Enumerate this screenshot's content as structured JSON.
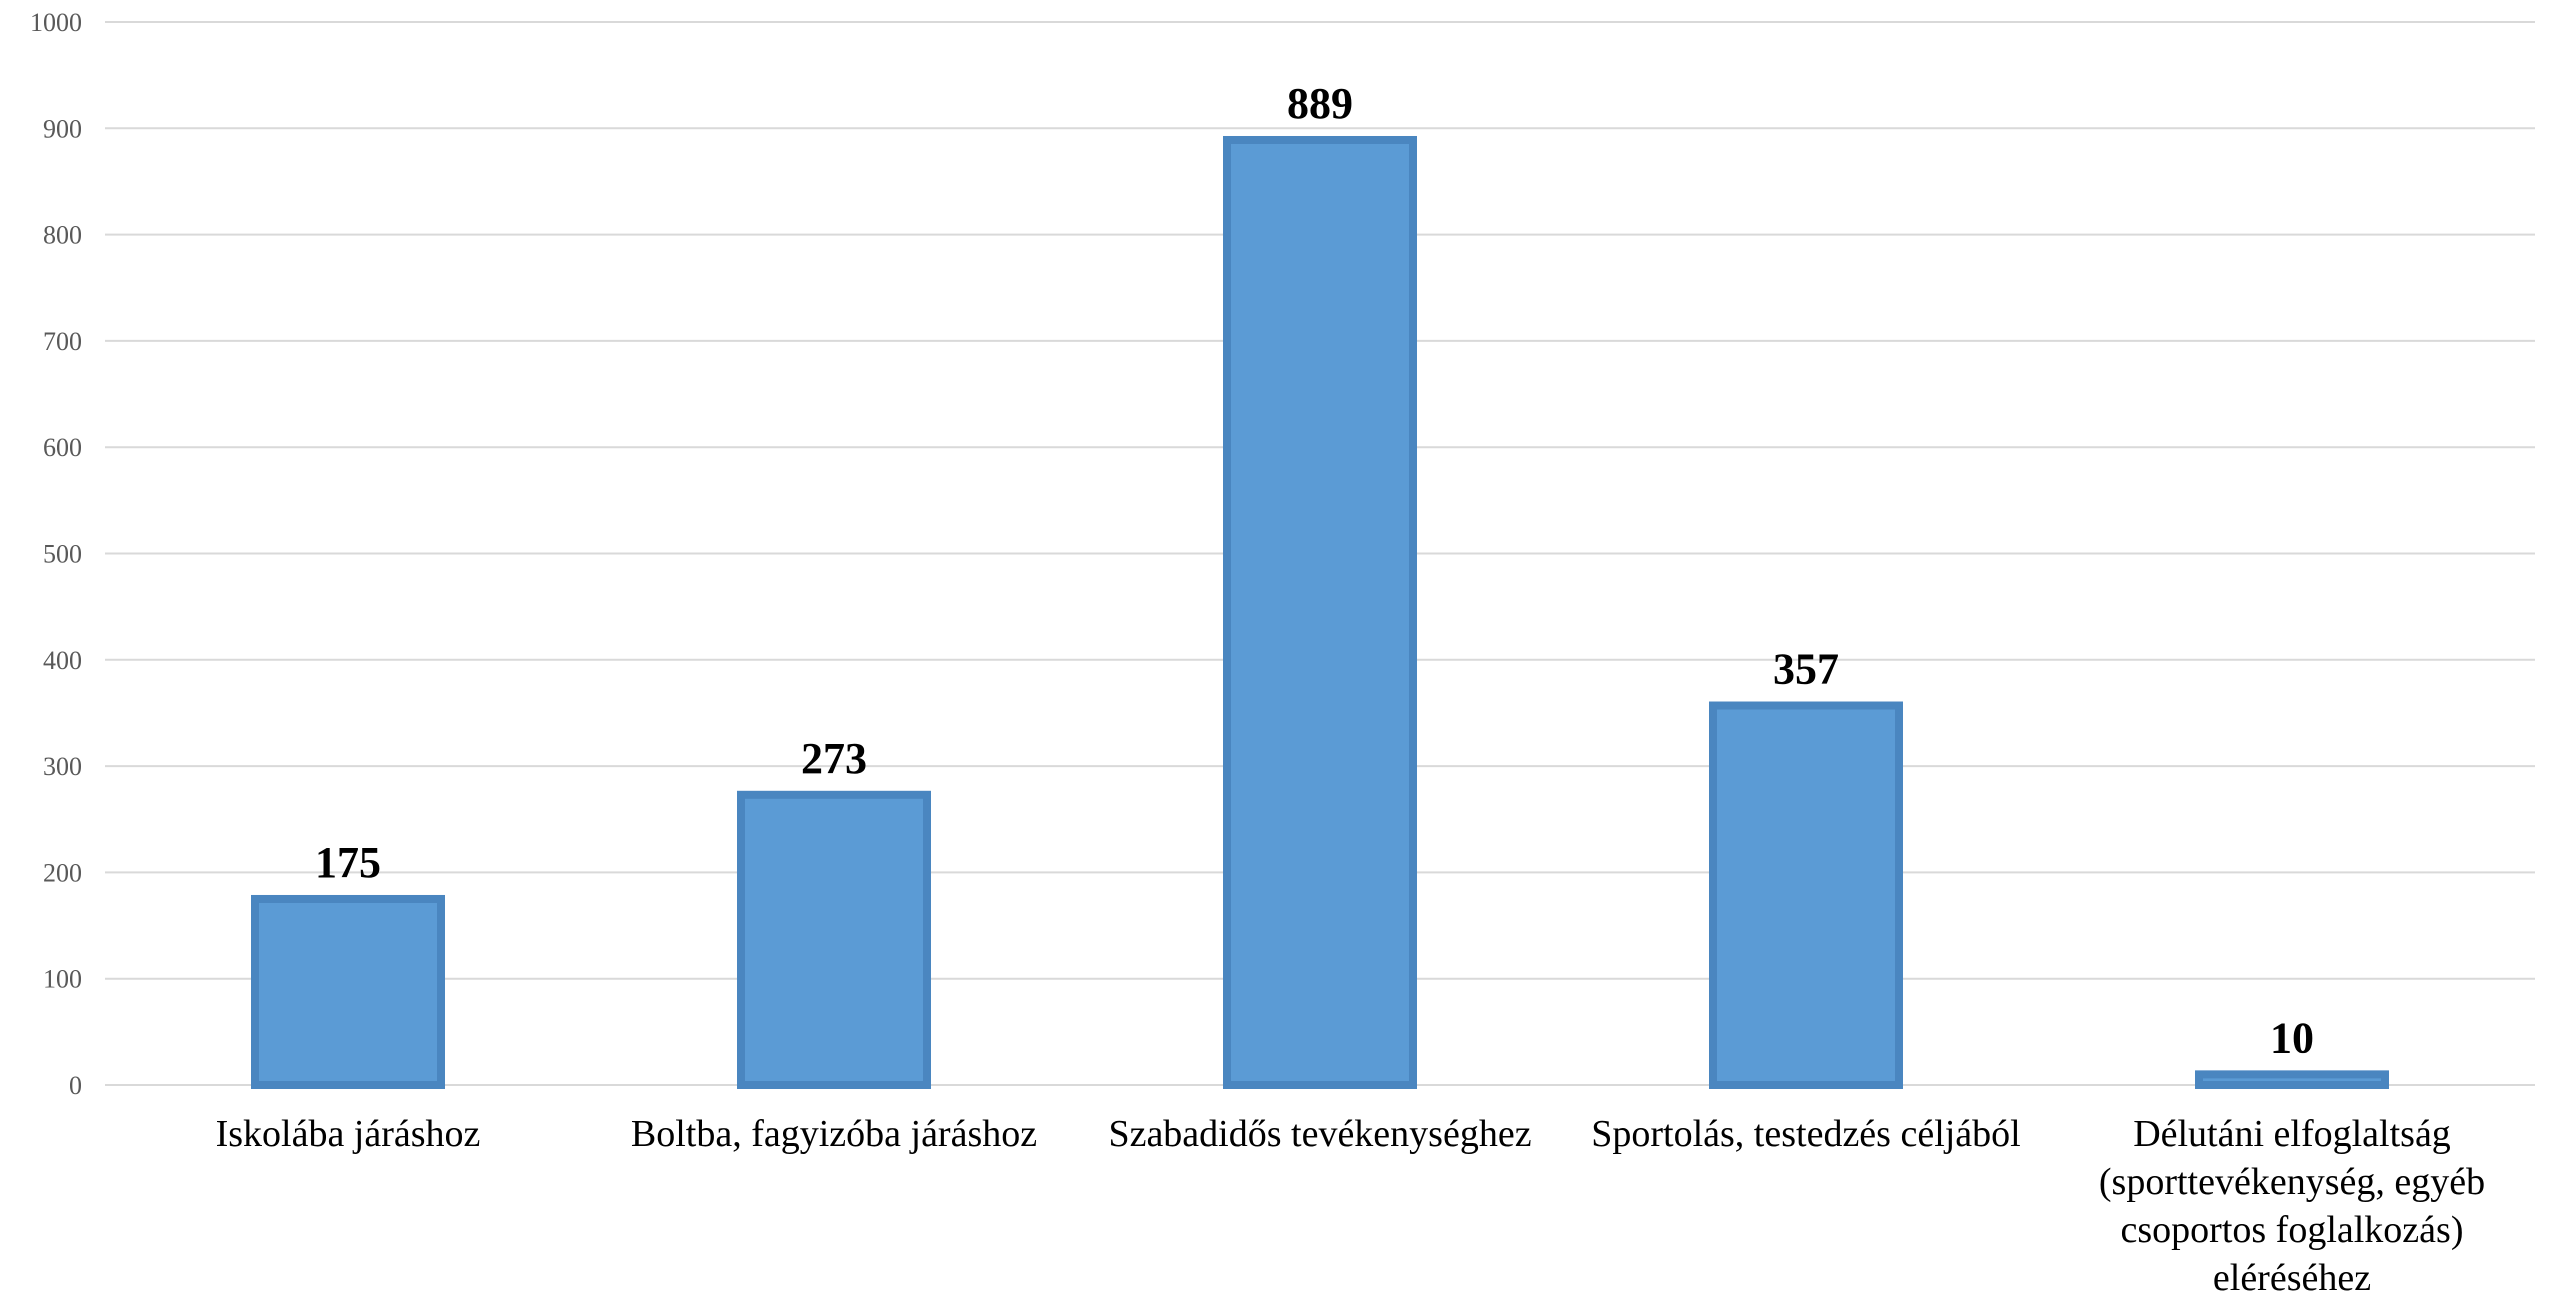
{
  "chart_data": {
    "type": "bar",
    "categories": [
      [
        "Iskolába járáshoz"
      ],
      [
        "Boltba, fagyizóba járáshoz"
      ],
      [
        "Szabadidős tevékenységhez"
      ],
      [
        "Sportolás, testedzés céljából"
      ],
      [
        "Délutáni elfoglaltság",
        "(sporttevékenység, egyéb",
        "csoportos foglalkozás)",
        "eléréséhez"
      ]
    ],
    "values": [
      175,
      273,
      889,
      357,
      10
    ],
    "data_labels": [
      "175",
      "273",
      "889",
      "357",
      "10"
    ],
    "ylim": [
      0,
      1000
    ],
    "yticks": [
      0,
      100,
      200,
      300,
      400,
      500,
      600,
      700,
      800,
      900,
      1000
    ],
    "grid": true,
    "legend": "none",
    "colors": {
      "bar_fill": "#5b9bd5",
      "bar_border": "#4a86c0",
      "grid": "#d9d9d9",
      "tick_text": "#595959"
    }
  }
}
